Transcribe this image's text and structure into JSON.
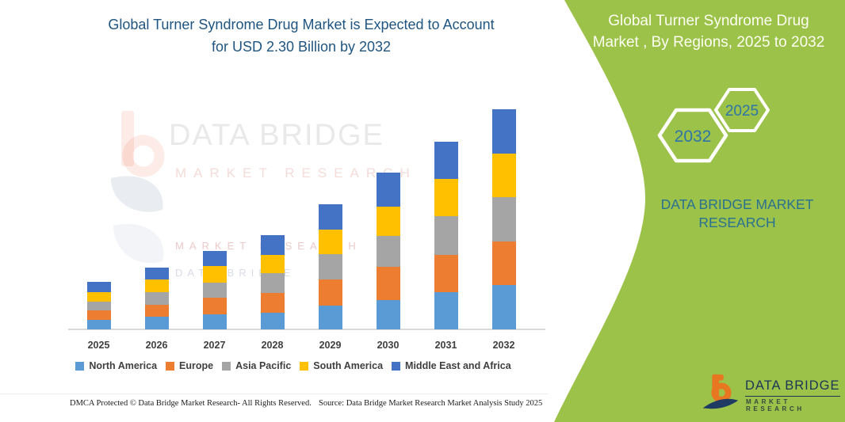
{
  "left_title": {
    "line1": "Global Turner Syndrome Drug Market is Expected to Account",
    "line2": "for USD 2.30 Billion by 2032"
  },
  "right_panel": {
    "title_line1": "Global Turner Syndrome Drug",
    "title_line2": "Market , By Regions, 2025 to 2032",
    "hexagons": [
      {
        "label": "2032"
      },
      {
        "label": "2025"
      }
    ],
    "brand_line1": "DATA BRIDGE MARKET",
    "brand_line2": "RESEARCH",
    "background_color": "#9CC249",
    "hexagon_text_color": "#2E74A8"
  },
  "watermark": {
    "title": "DATA BRIDGE",
    "subtitle": "MARKET RESEARCH",
    "echo1": "MARKET RESEARCH",
    "echo2": "DATA BRIDGE"
  },
  "logo": {
    "name": "DATA BRIDGE",
    "subtitle": "MARKET RESEARCH"
  },
  "footer": {
    "left": "DMCA Protected © Data Bridge Market Research- All Rights Reserved.",
    "source": "Source: Data Bridge Market Research Market Analysis Study 2025"
  },
  "chart_data": {
    "type": "bar",
    "subtype": "stacked",
    "categories": [
      "2025",
      "2026",
      "2027",
      "2028",
      "2029",
      "2030",
      "2031",
      "2032"
    ],
    "series": [
      {
        "name": "North America",
        "color": "#5B9BD5",
        "values": [
          0.1,
          0.13,
          0.16,
          0.17,
          0.25,
          0.31,
          0.39,
          0.46
        ]
      },
      {
        "name": "Europe",
        "color": "#ED7D31",
        "values": [
          0.1,
          0.13,
          0.17,
          0.21,
          0.27,
          0.34,
          0.39,
          0.46
        ]
      },
      {
        "name": "Asia Pacific",
        "color": "#A5A5A5",
        "values": [
          0.09,
          0.13,
          0.16,
          0.21,
          0.27,
          0.33,
          0.4,
          0.46
        ]
      },
      {
        "name": "South America",
        "color": "#FFC000",
        "values": [
          0.1,
          0.13,
          0.17,
          0.19,
          0.25,
          0.3,
          0.39,
          0.46
        ]
      },
      {
        "name": "Middle East and Africa",
        "color": "#4472C4",
        "values": [
          0.11,
          0.13,
          0.16,
          0.2,
          0.27,
          0.36,
          0.39,
          0.46
        ]
      }
    ],
    "totals_by_year": [
      0.5,
      0.65,
      0.82,
      0.98,
      1.31,
      1.64,
      1.96,
      2.3
    ],
    "value_unit": "USD Billion",
    "title": "Global Turner Syndrome Drug Market , By Regions, 2025 to 2032",
    "xlabel": "",
    "ylabel": "",
    "ylim": [
      0,
      2.45
    ],
    "grid": false,
    "y_axis_shown": false,
    "legend_position": "bottom"
  }
}
